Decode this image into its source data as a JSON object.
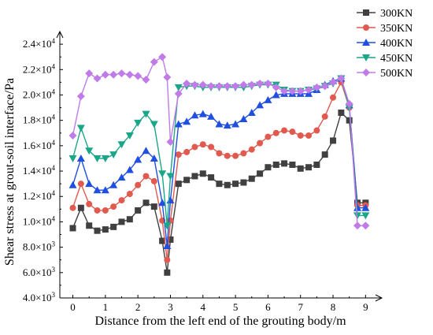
{
  "chart_data": {
    "type": "line",
    "title": "",
    "xlabel": "Distance from the left end of the grouting body/m",
    "ylabel": "Shear stress at grout-soil interface/Pa",
    "xlim": [
      -0.4,
      9.5
    ],
    "ylim": [
      4000,
      25000
    ],
    "x_ticks": [
      0,
      1,
      2,
      3,
      4,
      5,
      6,
      7,
      8,
      9
    ],
    "x_tick_labels": [
      "0",
      "1",
      "2",
      "3",
      "4",
      "5",
      "6",
      "7",
      "8",
      "9"
    ],
    "y_ticks": [
      4000,
      6000,
      8000,
      10000,
      12000,
      14000,
      16000,
      18000,
      20000,
      22000,
      24000
    ],
    "y_tick_labels": [
      {
        "mant": "4.0",
        "exp": "3"
      },
      {
        "mant": "6.0",
        "exp": "3"
      },
      {
        "mant": "8.0",
        "exp": "3"
      },
      {
        "mant": "1.0",
        "exp": "4"
      },
      {
        "mant": "1.2",
        "exp": "4"
      },
      {
        "mant": "1.4",
        "exp": "4"
      },
      {
        "mant": "1.6",
        "exp": "4"
      },
      {
        "mant": "1.8",
        "exp": "4"
      },
      {
        "mant": "2.0",
        "exp": "4"
      },
      {
        "mant": "2.2",
        "exp": "4"
      },
      {
        "mant": "2.4",
        "exp": "4"
      }
    ],
    "x10_text": "×10",
    "legend_position": "top-right",
    "grid": false,
    "series": [
      {
        "name": "300KN",
        "color": "#404040",
        "marker": "square",
        "x": [
          0,
          0.25,
          0.5,
          0.75,
          1.0,
          1.25,
          1.5,
          1.75,
          2.0,
          2.25,
          2.5,
          2.75,
          2.9,
          3.0,
          3.25,
          3.5,
          3.75,
          4.0,
          4.25,
          4.5,
          4.75,
          5.0,
          5.25,
          5.5,
          5.75,
          6.0,
          6.25,
          6.5,
          6.75,
          7.0,
          7.25,
          7.5,
          7.75,
          8.0,
          8.25,
          8.5,
          8.75,
          9.0
        ],
        "y": [
          9500,
          11100,
          9700,
          9300,
          9400,
          9600,
          10000,
          10200,
          10900,
          11500,
          11200,
          8500,
          6000,
          8600,
          13000,
          13300,
          13600,
          13800,
          13500,
          13000,
          12900,
          13000,
          13100,
          13400,
          13800,
          14300,
          14500,
          14600,
          14500,
          14200,
          14300,
          14500,
          15300,
          16400,
          18600,
          18000,
          11500,
          11500
        ]
      },
      {
        "name": "350KN",
        "color": "#e05a4f",
        "marker": "circle",
        "x": [
          0,
          0.25,
          0.5,
          0.75,
          1.0,
          1.25,
          1.5,
          1.75,
          2.0,
          2.25,
          2.5,
          2.75,
          2.9,
          3.0,
          3.25,
          3.5,
          3.75,
          4.0,
          4.25,
          4.5,
          4.75,
          5.0,
          5.25,
          5.5,
          5.75,
          6.0,
          6.25,
          6.5,
          6.75,
          7.0,
          7.25,
          7.5,
          7.75,
          8.0,
          8.25,
          8.5,
          8.75,
          9.0
        ],
        "y": [
          11100,
          13000,
          11400,
          10900,
          10900,
          11200,
          11700,
          12200,
          12900,
          13600,
          13200,
          10100,
          7000,
          10100,
          15300,
          15500,
          15900,
          16100,
          15900,
          15400,
          15200,
          15200,
          15400,
          15700,
          16200,
          16700,
          17000,
          17200,
          17100,
          16800,
          16800,
          17200,
          18300,
          19800,
          21000,
          19000,
          11300,
          11300
        ]
      },
      {
        "name": "400KN",
        "color": "#1f4fe0",
        "marker": "triangle-up",
        "x": [
          0,
          0.25,
          0.5,
          0.75,
          1.0,
          1.25,
          1.5,
          1.75,
          2.0,
          2.25,
          2.5,
          2.75,
          2.9,
          3.0,
          3.25,
          3.5,
          3.75,
          4.0,
          4.25,
          4.5,
          4.75,
          5.0,
          5.25,
          5.5,
          5.75,
          6.0,
          6.25,
          6.5,
          6.75,
          7.0,
          7.25,
          7.5,
          7.75,
          8.0,
          8.25,
          8.5,
          8.75,
          9.0
        ],
        "y": [
          12900,
          15000,
          13000,
          12500,
          12500,
          12900,
          13500,
          14100,
          14900,
          15600,
          15000,
          11500,
          8100,
          11700,
          17700,
          17900,
          18400,
          18500,
          18300,
          17700,
          17600,
          17700,
          18100,
          18600,
          19200,
          19600,
          20000,
          20100,
          20100,
          20100,
          20100,
          20400,
          20800,
          21100,
          21300,
          19200,
          11100,
          11100
        ]
      },
      {
        "name": "450KN",
        "color": "#1aa688",
        "marker": "triangle-down",
        "x": [
          0,
          0.25,
          0.5,
          0.75,
          1.0,
          1.25,
          1.5,
          1.75,
          2.0,
          2.25,
          2.5,
          2.75,
          2.9,
          3.0,
          3.25,
          3.5,
          3.75,
          4.0,
          4.25,
          4.5,
          4.75,
          5.0,
          5.25,
          5.5,
          5.75,
          6.0,
          6.25,
          6.5,
          6.75,
          7.0,
          7.25,
          7.5,
          7.75,
          8.0,
          8.25,
          8.5,
          8.75,
          9.0
        ],
        "y": [
          15000,
          17400,
          15600,
          15000,
          15000,
          15300,
          16100,
          16800,
          17800,
          18500,
          17700,
          13800,
          9700,
          13600,
          20600,
          20700,
          20700,
          20600,
          20600,
          20600,
          20600,
          20600,
          20600,
          20700,
          20800,
          20800,
          20800,
          20400,
          20300,
          20300,
          20400,
          20500,
          20700,
          20900,
          21300,
          19000,
          10500,
          10500
        ]
      },
      {
        "name": "500KN",
        "color": "#c07be8",
        "marker": "diamond",
        "x": [
          0,
          0.25,
          0.5,
          0.75,
          1.0,
          1.25,
          1.5,
          1.75,
          2.0,
          2.25,
          2.5,
          2.75,
          2.9,
          3.0,
          3.25,
          3.5,
          3.75,
          4.0,
          4.25,
          4.5,
          4.75,
          5.0,
          5.25,
          5.5,
          5.75,
          6.0,
          6.25,
          6.5,
          6.75,
          7.0,
          7.25,
          7.5,
          7.75,
          8.0,
          8.25,
          8.5,
          8.75,
          9.0
        ],
        "y": [
          16800,
          19900,
          21700,
          21300,
          21600,
          21600,
          21700,
          21600,
          21500,
          21200,
          22600,
          23000,
          21400,
          16300,
          20100,
          20900,
          20800,
          20800,
          20700,
          20700,
          20700,
          20700,
          20800,
          20800,
          20900,
          20900,
          20600,
          20300,
          20300,
          20300,
          20400,
          20600,
          20700,
          21000,
          21300,
          19300,
          9700,
          9700
        ]
      }
    ]
  }
}
